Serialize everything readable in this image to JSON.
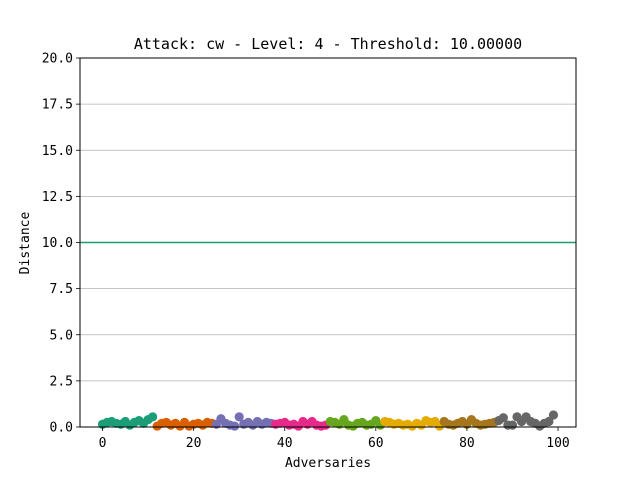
{
  "chart_data": {
    "type": "scatter",
    "title": "Attack: cw - Level: 4 - Threshold: 10.00000",
    "xlabel": "Adversaries",
    "ylabel": "Distance",
    "xlim": [
      -4.95,
      103.95
    ],
    "ylim": [
      0,
      20
    ],
    "xticks": [
      0,
      20,
      40,
      60,
      80,
      100
    ],
    "xtick_labels": [
      "0",
      "20",
      "40",
      "60",
      "80",
      "100"
    ],
    "yticks": [
      0,
      2.5,
      5,
      7.5,
      10,
      12.5,
      15,
      17.5,
      20
    ],
    "ytick_labels": [
      "0.0",
      "2.5",
      "5.0",
      "7.5",
      "10.0",
      "12.5",
      "15.0",
      "17.5",
      "20.0"
    ],
    "grid": "y",
    "threshold": {
      "y": 10,
      "color": "#1b9e77"
    },
    "colors": [
      "#1b9e77",
      "#d95f02",
      "#7570b3",
      "#e7298a",
      "#66a61e",
      "#e6ab02",
      "#a6761d",
      "#666666"
    ],
    "points": [
      {
        "x": 0,
        "y": 0.15,
        "c": 0
      },
      {
        "x": 1,
        "y": 0.25,
        "c": 0
      },
      {
        "x": 2,
        "y": 0.3,
        "c": 0
      },
      {
        "x": 3,
        "y": 0.2,
        "c": 0
      },
      {
        "x": 4,
        "y": 0.15,
        "c": 0
      },
      {
        "x": 5,
        "y": 0.3,
        "c": 0
      },
      {
        "x": 6,
        "y": 0.1,
        "c": 0
      },
      {
        "x": 7,
        "y": 0.25,
        "c": 0
      },
      {
        "x": 8,
        "y": 0.35,
        "c": 0
      },
      {
        "x": 9,
        "y": 0.2,
        "c": 0
      },
      {
        "x": 10,
        "y": 0.4,
        "c": 0
      },
      {
        "x": 11,
        "y": 0.55,
        "c": 0
      },
      {
        "x": 12,
        "y": 0.05,
        "c": 1
      },
      {
        "x": 13,
        "y": 0.2,
        "c": 1
      },
      {
        "x": 14,
        "y": 0.25,
        "c": 1
      },
      {
        "x": 15,
        "y": 0.1,
        "c": 1
      },
      {
        "x": 16,
        "y": 0.2,
        "c": 1
      },
      {
        "x": 17,
        "y": 0.05,
        "c": 1
      },
      {
        "x": 18,
        "y": 0.25,
        "c": 1
      },
      {
        "x": 19,
        "y": 0.05,
        "c": 1
      },
      {
        "x": 20,
        "y": 0.15,
        "c": 1
      },
      {
        "x": 21,
        "y": 0.2,
        "c": 1
      },
      {
        "x": 22,
        "y": 0.1,
        "c": 1
      },
      {
        "x": 23,
        "y": 0.25,
        "c": 1
      },
      {
        "x": 24,
        "y": 0.2,
        "c": 1
      },
      {
        "x": 25,
        "y": 0.15,
        "c": 2
      },
      {
        "x": 26,
        "y": 0.45,
        "c": 2
      },
      {
        "x": 27,
        "y": 0.2,
        "c": 2
      },
      {
        "x": 28,
        "y": 0.1,
        "c": 2
      },
      {
        "x": 29,
        "y": 0.05,
        "c": 2
      },
      {
        "x": 30,
        "y": 0.55,
        "c": 2
      },
      {
        "x": 31,
        "y": 0.15,
        "c": 2
      },
      {
        "x": 32,
        "y": 0.25,
        "c": 2
      },
      {
        "x": 33,
        "y": 0.1,
        "c": 2
      },
      {
        "x": 34,
        "y": 0.3,
        "c": 2
      },
      {
        "x": 35,
        "y": 0.15,
        "c": 2
      },
      {
        "x": 36,
        "y": 0.25,
        "c": 2
      },
      {
        "x": 37,
        "y": 0.2,
        "c": 2
      },
      {
        "x": 38,
        "y": 0.15,
        "c": 3
      },
      {
        "x": 39,
        "y": 0.2,
        "c": 3
      },
      {
        "x": 40,
        "y": 0.25,
        "c": 3
      },
      {
        "x": 41,
        "y": 0.1,
        "c": 3
      },
      {
        "x": 42,
        "y": 0.15,
        "c": 3
      },
      {
        "x": 43,
        "y": 0.05,
        "c": 3
      },
      {
        "x": 44,
        "y": 0.3,
        "c": 3
      },
      {
        "x": 45,
        "y": 0.15,
        "c": 3
      },
      {
        "x": 46,
        "y": 0.3,
        "c": 3
      },
      {
        "x": 47,
        "y": 0.1,
        "c": 3
      },
      {
        "x": 48,
        "y": 0.05,
        "c": 3
      },
      {
        "x": 49,
        "y": 0.1,
        "c": 3
      },
      {
        "x": 50,
        "y": 0.3,
        "c": 4
      },
      {
        "x": 51,
        "y": 0.25,
        "c": 4
      },
      {
        "x": 52,
        "y": 0.15,
        "c": 4
      },
      {
        "x": 53,
        "y": 0.4,
        "c": 4
      },
      {
        "x": 54,
        "y": 0.1,
        "c": 4
      },
      {
        "x": 55,
        "y": 0.05,
        "c": 4
      },
      {
        "x": 56,
        "y": 0.2,
        "c": 4
      },
      {
        "x": 57,
        "y": 0.25,
        "c": 4
      },
      {
        "x": 58,
        "y": 0.1,
        "c": 4
      },
      {
        "x": 59,
        "y": 0.15,
        "c": 4
      },
      {
        "x": 60,
        "y": 0.35,
        "c": 4
      },
      {
        "x": 61,
        "y": 0.1,
        "c": 4
      },
      {
        "x": 62,
        "y": 0.3,
        "c": 5
      },
      {
        "x": 63,
        "y": 0.25,
        "c": 5
      },
      {
        "x": 64,
        "y": 0.15,
        "c": 5
      },
      {
        "x": 65,
        "y": 0.2,
        "c": 5
      },
      {
        "x": 66,
        "y": 0.1,
        "c": 5
      },
      {
        "x": 67,
        "y": 0.15,
        "c": 5
      },
      {
        "x": 68,
        "y": 0.05,
        "c": 5
      },
      {
        "x": 69,
        "y": 0.2,
        "c": 5
      },
      {
        "x": 70,
        "y": 0.1,
        "c": 5
      },
      {
        "x": 71,
        "y": 0.35,
        "c": 5
      },
      {
        "x": 72,
        "y": 0.25,
        "c": 5
      },
      {
        "x": 73,
        "y": 0.3,
        "c": 5
      },
      {
        "x": 74,
        "y": 0.05,
        "c": 5
      },
      {
        "x": 75,
        "y": 0.3,
        "c": 6
      },
      {
        "x": 76,
        "y": 0.15,
        "c": 6
      },
      {
        "x": 77,
        "y": 0.1,
        "c": 6
      },
      {
        "x": 78,
        "y": 0.2,
        "c": 6
      },
      {
        "x": 79,
        "y": 0.3,
        "c": 6
      },
      {
        "x": 80,
        "y": 0.15,
        "c": 6
      },
      {
        "x": 81,
        "y": 0.4,
        "c": 6
      },
      {
        "x": 82,
        "y": 0.2,
        "c": 6
      },
      {
        "x": 83,
        "y": 0.1,
        "c": 6
      },
      {
        "x": 84,
        "y": 0.15,
        "c": 6
      },
      {
        "x": 85,
        "y": 0.2,
        "c": 6
      },
      {
        "x": 86,
        "y": 0.25,
        "c": 6
      },
      {
        "x": 87,
        "y": 0.35,
        "c": 7
      },
      {
        "x": 88,
        "y": 0.5,
        "c": 7
      },
      {
        "x": 89,
        "y": 0.1,
        "c": 7
      },
      {
        "x": 90,
        "y": 0.1,
        "c": 7
      },
      {
        "x": 91,
        "y": 0.55,
        "c": 7
      },
      {
        "x": 92,
        "y": 0.3,
        "c": 7
      },
      {
        "x": 93,
        "y": 0.55,
        "c": 7
      },
      {
        "x": 94,
        "y": 0.3,
        "c": 7
      },
      {
        "x": 95,
        "y": 0.2,
        "c": 7
      },
      {
        "x": 96,
        "y": 0.05,
        "c": 7
      },
      {
        "x": 97,
        "y": 0.2,
        "c": 7
      },
      {
        "x": 98,
        "y": 0.3,
        "c": 7
      },
      {
        "x": 99,
        "y": 0.65,
        "c": 7
      }
    ]
  }
}
